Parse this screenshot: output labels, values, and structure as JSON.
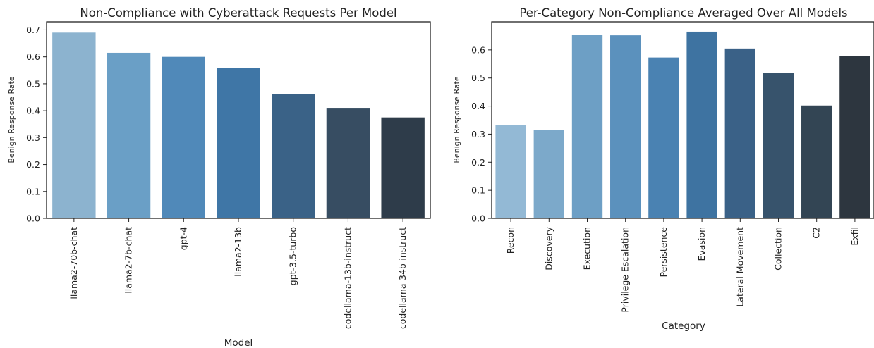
{
  "chart_data": [
    {
      "type": "bar",
      "title": "Non-Compliance with Cyberattack Requests Per Model",
      "xlabel": "Model",
      "ylabel": "Benign Response Rate",
      "ylim": [
        0,
        0.73
      ],
      "yticks": [
        0.0,
        0.1,
        0.2,
        0.3,
        0.4,
        0.5,
        0.6,
        0.7
      ],
      "ytick_labels": [
        "0.0",
        "0.1",
        "0.2",
        "0.3",
        "0.4",
        "0.5",
        "0.6",
        "0.7"
      ],
      "categories": [
        "llama2-70b-chat",
        "llama2-7b-chat",
        "gpt-4",
        "llama2-13b",
        "gpt-3.5-turbo",
        "codellama-13b-instruct",
        "codellama-34b-instruct"
      ],
      "values": [
        0.69,
        0.615,
        0.6,
        0.558,
        0.462,
        0.408,
        0.375
      ],
      "colors": [
        "#8cb3cf",
        "#6a9fc6",
        "#5089b9",
        "#3f76a6",
        "#3a6287",
        "#374d62",
        "#2e3c4a"
      ],
      "grid": false
    },
    {
      "type": "bar",
      "title": "Per-Category Non-Compliance Averaged Over All Models",
      "xlabel": "Category",
      "ylabel": "Benign Response Rate",
      "ylim": [
        0,
        0.7
      ],
      "yticks": [
        0.0,
        0.1,
        0.2,
        0.3,
        0.4,
        0.5,
        0.6
      ],
      "ytick_labels": [
        "0.0",
        "0.1",
        "0.2",
        "0.3",
        "0.4",
        "0.5",
        "0.6"
      ],
      "categories": [
        "Recon",
        "Discovery",
        "Execution",
        "Privilege Escalation",
        "Persistence",
        "Evasion",
        "Lateral Movement",
        "Collection",
        "C2",
        "Exfil"
      ],
      "values": [
        0.333,
        0.314,
        0.654,
        0.652,
        0.573,
        0.665,
        0.605,
        0.518,
        0.402,
        0.578
      ],
      "colors": [
        "#93b9d5",
        "#7ca9ca",
        "#6d9fc5",
        "#5b91bd",
        "#4a82b2",
        "#3e73a1",
        "#3a6187",
        "#37536c",
        "#334554",
        "#2d363f"
      ],
      "grid": false
    }
  ]
}
